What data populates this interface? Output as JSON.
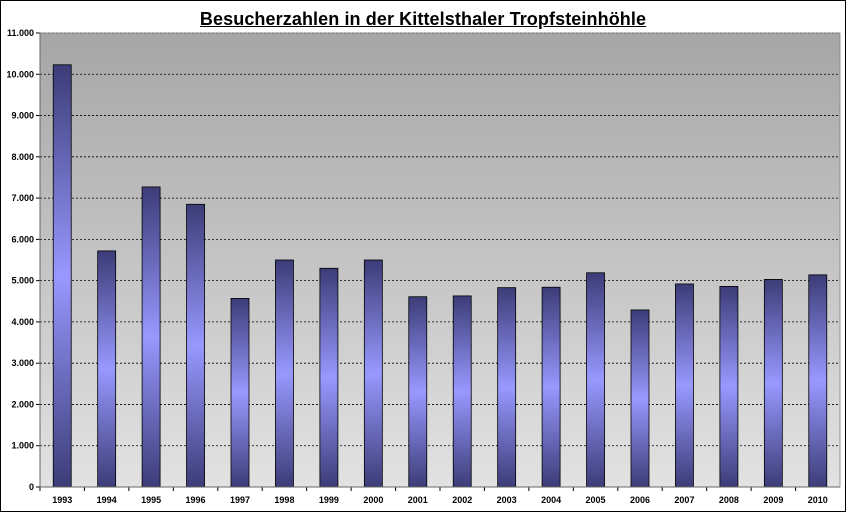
{
  "chart_data": {
    "type": "bar",
    "title": "Besucherzahlen in der Kittelsthaler Tropfsteinhöhle",
    "xlabel": "",
    "ylabel": "",
    "categories": [
      "1993",
      "1994",
      "1995",
      "1996",
      "1997",
      "1998",
      "1999",
      "2000",
      "2001",
      "2002",
      "2003",
      "2004",
      "2005",
      "2006",
      "2007",
      "2008",
      "2009",
      "2010"
    ],
    "values": [
      10230,
      5720,
      7270,
      6850,
      4570,
      5500,
      5300,
      5500,
      4610,
      4630,
      4830,
      4840,
      5190,
      4290,
      4920,
      4860,
      5030,
      5140
    ],
    "ylim": [
      0,
      11000
    ],
    "ytick_labels": [
      "0",
      "1.000",
      "2.000",
      "3.000",
      "4.000",
      "5.000",
      "6.000",
      "7.000",
      "8.000",
      "9.000",
      "10.000",
      "11.000"
    ],
    "grid": true,
    "legend": "none",
    "colors": {
      "plot_background_top": "#a6a6a6",
      "plot_background_bottom": "#e2e2e2",
      "bar_edge": "#3c3c78",
      "bar_center": "#9898ff",
      "gridline": "#000000"
    }
  }
}
